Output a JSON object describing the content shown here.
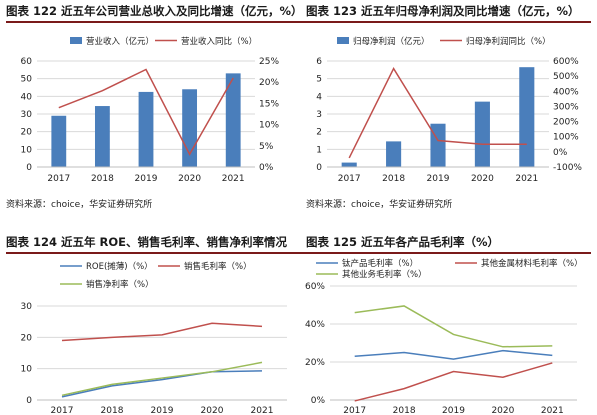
{
  "titles": {
    "c122": "图表 122 近五年公司营业总收入及同比增速（亿元，%）",
    "c123": "图表 123 近五年归母净利润及同比增速（亿元，%）",
    "c124": "图表 124 近五年 ROE、销售毛利率、销售净利率情况",
    "c125": "图表 125 近五年各产品毛利率（%）"
  },
  "source": "资料来源：choice，华安证券研究所",
  "colors": {
    "bar": "#4a7ebb",
    "red_line": "#c0504d",
    "blue_line": "#4a7ebb",
    "olive_line": "#9bbb59",
    "title_rule": "#7a1a1a"
  },
  "chart_data": [
    {
      "id": "c122",
      "type": "bar",
      "categories": [
        "2017",
        "2018",
        "2019",
        "2020",
        "2021"
      ],
      "series": [
        {
          "name": "营业收入（亿元）",
          "type": "bar",
          "axis": "left",
          "values": [
            29,
            34.5,
            42.5,
            44,
            53
          ]
        },
        {
          "name": "营业收入同比（%）",
          "type": "line",
          "axis": "right",
          "values": [
            14,
            18,
            23,
            3,
            21
          ]
        }
      ],
      "ylim_left": [
        0,
        60
      ],
      "yticks_left": [
        "0",
        "10",
        "20",
        "30",
        "40",
        "50",
        "60"
      ],
      "ylim_right": [
        0,
        25
      ],
      "yticks_right": [
        "0%",
        "5%",
        "10%",
        "15%",
        "20%",
        "25%"
      ],
      "legend": "top"
    },
    {
      "id": "c123",
      "type": "bar",
      "categories": [
        "2017",
        "2018",
        "2019",
        "2020",
        "2021"
      ],
      "series": [
        {
          "name": "归母净利润（亿元）",
          "type": "bar",
          "axis": "left",
          "values": [
            0.25,
            1.45,
            2.45,
            3.7,
            5.65
          ]
        },
        {
          "name": "归母净利润同比（%）",
          "type": "line",
          "axis": "right",
          "values": [
            -40,
            550,
            75,
            50,
            50
          ]
        }
      ],
      "ylim_left": [
        0,
        6
      ],
      "yticks_left": [
        "0",
        "1",
        "2",
        "3",
        "4",
        "5",
        "6"
      ],
      "ylim_right": [
        -100,
        600
      ],
      "yticks_right": [
        "-100%",
        "0%",
        "100%",
        "200%",
        "300%",
        "400%",
        "500%",
        "600%"
      ],
      "legend": "top"
    },
    {
      "id": "c124",
      "type": "line",
      "categories": [
        "2017",
        "2018",
        "2019",
        "2020",
        "2021"
      ],
      "series": [
        {
          "name": "ROE(摊薄)（%）",
          "color": "#4a7ebb",
          "values": [
            1,
            4.5,
            6.5,
            9,
            9.3
          ]
        },
        {
          "name": "销售毛利率（%）",
          "color": "#c0504d",
          "values": [
            19,
            20,
            20.8,
            24.5,
            23.5
          ]
        },
        {
          "name": "销售净利率（%）",
          "color": "#9bbb59",
          "values": [
            1.5,
            5,
            7,
            9,
            12
          ]
        }
      ],
      "ylim": [
        0,
        30
      ],
      "yticks": [
        "0",
        "10",
        "20",
        "30"
      ],
      "legend": "top"
    },
    {
      "id": "c125",
      "type": "line",
      "categories": [
        "2017",
        "2018",
        "2019",
        "2020",
        "2021"
      ],
      "series": [
        {
          "name": "钛产品毛利率（%）",
          "color": "#4a7ebb",
          "values": [
            23,
            25,
            21.5,
            26,
            23.5
          ]
        },
        {
          "name": "其他金属材料毛利率（%）",
          "color": "#c0504d",
          "values": [
            -0.5,
            6,
            15,
            12,
            19.5
          ]
        },
        {
          "name": "其他业务毛利率（%）",
          "color": "#9bbb59",
          "values": [
            46,
            49.5,
            34.5,
            28,
            28.5
          ]
        }
      ],
      "ylim": [
        0,
        60
      ],
      "yticks": [
        "0%",
        "20%",
        "40%",
        "60%"
      ],
      "legend": "top"
    }
  ]
}
